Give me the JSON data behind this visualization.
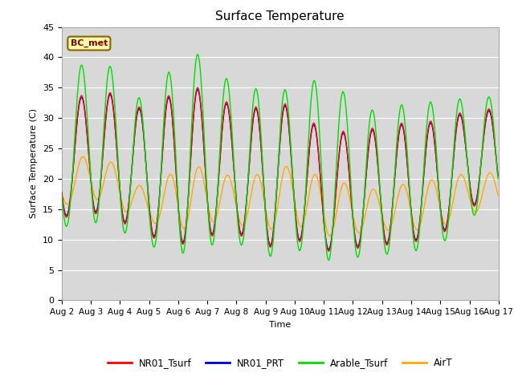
{
  "title": "Surface Temperature",
  "ylabel": "Surface Temperature (C)",
  "xlabel": "Time",
  "ylim": [
    0,
    45
  ],
  "annotation": "BC_met",
  "plot_bg_color": "#d8d8d8",
  "fig_bg_color": "#ffffff",
  "line_colors": {
    "NR01_Tsurf": "#ff0000",
    "NR01_PRT": "#0000dd",
    "Arable_Tsurf": "#00dd00",
    "AirT": "#ffaa00"
  },
  "legend_labels": [
    "NR01_Tsurf",
    "NR01_PRT",
    "Arable_Tsurf",
    "AirT"
  ],
  "num_days": 15,
  "diurnal_min_base": [
    13.5,
    14.5,
    13.0,
    10.5,
    9.0,
    10.5,
    11.0,
    8.5,
    10.0,
    8.0,
    8.5,
    9.0,
    9.5,
    10.5,
    15.5
  ],
  "diurnal_max_NR01": [
    30.0,
    35.5,
    33.5,
    31.0,
    35.0,
    35.0,
    31.5,
    32.0,
    32.5,
    27.5,
    28.0,
    28.5,
    29.5,
    29.5,
    31.5
  ],
  "diurnal_max_arable": [
    33.0,
    41.5,
    37.0,
    31.5,
    40.5,
    40.5,
    34.5,
    35.0,
    34.5,
    37.0,
    33.0,
    30.5,
    33.0,
    32.5,
    33.5
  ],
  "diurnal_min_airt": [
    15.5,
    17.0,
    15.0,
    13.0,
    11.5,
    13.0,
    12.5,
    11.5,
    12.5,
    10.5,
    11.0,
    11.5,
    11.5,
    12.0,
    14.5
  ],
  "diurnal_max_airt": [
    21.5,
    24.5,
    22.0,
    17.5,
    22.0,
    22.0,
    20.0,
    21.0,
    22.5,
    20.0,
    19.0,
    18.0,
    19.5,
    20.0,
    21.0
  ]
}
